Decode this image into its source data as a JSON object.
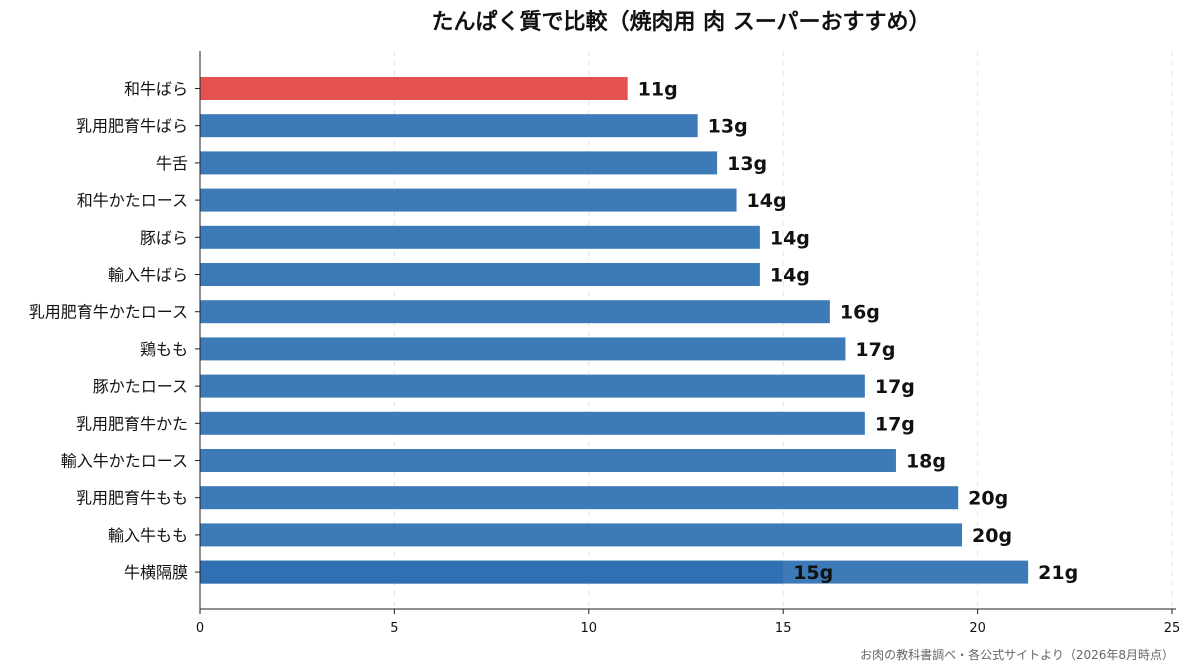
{
  "chart_data": {
    "type": "bar",
    "orientation": "horizontal",
    "title": "たんぱく質で比較（焼肉用 肉 スーパーおすすめ）",
    "xlim": [
      0,
      25
    ],
    "xticks": [
      0,
      5,
      10,
      15,
      20,
      25
    ],
    "grid": "vertical dashed",
    "source": "お肉の教科書調べ・各公式サイトより（2026年8月時点）",
    "highlight_color": "#e45151",
    "bar_color": "#3d7ab8",
    "bars": [
      {
        "category": "和牛ばら",
        "value": 11,
        "label": "11g",
        "highlight": true
      },
      {
        "category": "乳用肥育牛ばら",
        "value": 12.8,
        "label": "13g"
      },
      {
        "category": "牛舌",
        "value": 13.3,
        "label": "13g"
      },
      {
        "category": "和牛かたロース",
        "value": 13.8,
        "label": "14g"
      },
      {
        "category": "豚ばら",
        "value": 14.4,
        "label": "14g"
      },
      {
        "category": "輸入牛ばら",
        "value": 14.4,
        "label": "14g"
      },
      {
        "category": "乳用肥育牛かたロース",
        "value": 16.2,
        "label": "16g"
      },
      {
        "category": "鶏もも",
        "value": 16.6,
        "label": "17g"
      },
      {
        "category": "豚かたロース",
        "value": 17.1,
        "label": "17g"
      },
      {
        "category": "乳用肥育牛かた",
        "value": 17.1,
        "label": "17g"
      },
      {
        "category": "輸入牛かたロース",
        "value": 17.9,
        "label": "18g"
      },
      {
        "category": "乳用肥育牛もも",
        "value": 19.5,
        "label": "20g"
      },
      {
        "category": "輸入牛もも",
        "value": 19.6,
        "label": "20g"
      },
      {
        "category": "牛横隔膜",
        "value": 21.3,
        "label": "21g",
        "overlay_value": 15,
        "overlay_label": "15g",
        "overlay_color": "#2e6db0"
      }
    ]
  }
}
